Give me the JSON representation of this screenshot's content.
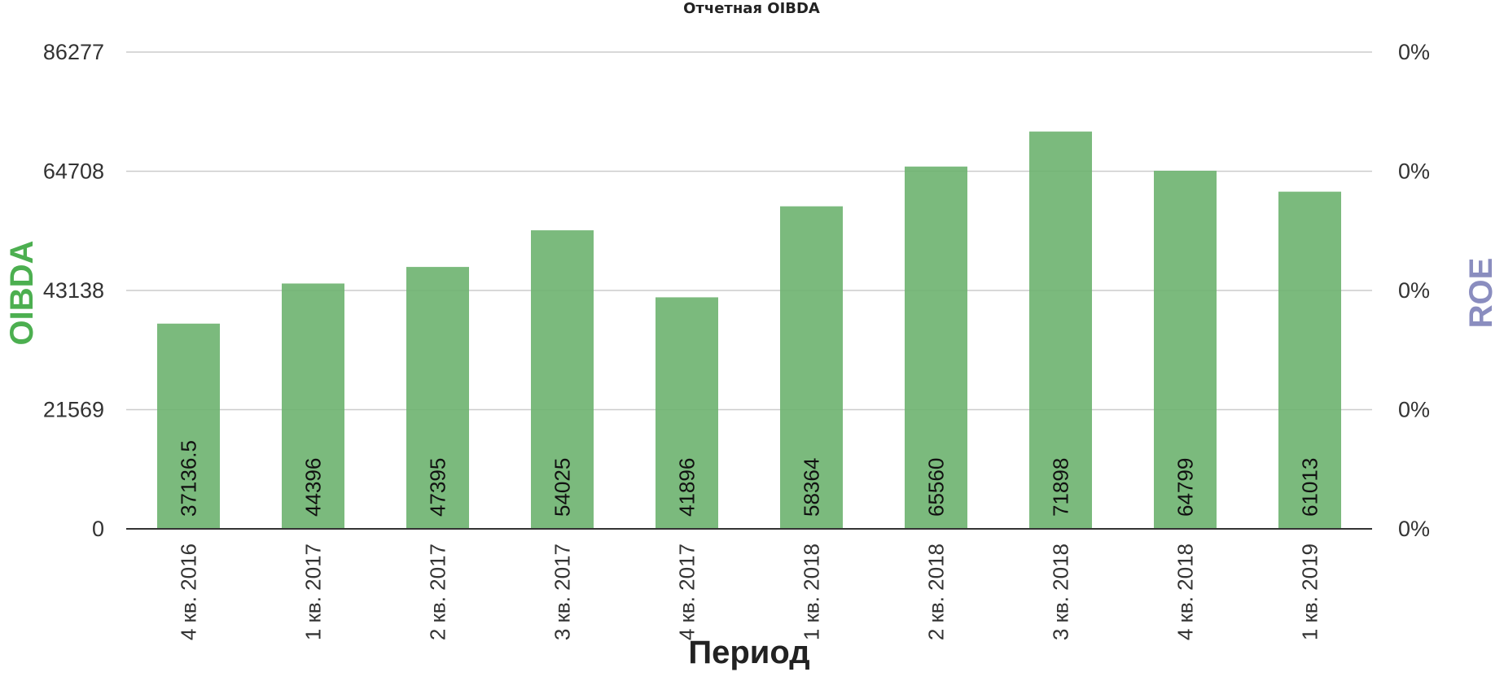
{
  "chart_data": {
    "type": "bar",
    "title": "Отчетная OIBDA",
    "xlabel": "Период",
    "ylabel": "OIBDA",
    "y2label": "ROE",
    "categories": [
      "4 кв. 2016",
      "1 кв. 2017",
      "2 кв. 2017",
      "3 кв. 2017",
      "4 кв. 2017",
      "1 кв. 2018",
      "2 кв. 2018",
      "3 кв. 2018",
      "4 кв. 2018",
      "1 кв. 2019"
    ],
    "series": [
      {
        "values": [
          37136.5,
          44396,
          47395,
          54025,
          41896,
          58364,
          65560,
          71898,
          64799,
          61013
        ]
      }
    ],
    "data_labels": [
      "37136.5",
      "44396",
      "47395",
      "54025",
      "41896",
      "58364",
      "65560",
      "71898",
      "64799",
      "61013"
    ],
    "ylim": [
      0,
      86277
    ],
    "y_ticks": [
      0,
      21569,
      43138,
      64708,
      86277
    ],
    "y2_ticks": [
      "0%",
      "0%",
      "0%",
      "0%",
      "0%"
    ],
    "grid": true,
    "colors": {
      "bar": "#6db36f",
      "ylabel": "#4caf50",
      "y2label": "#8a8dbf",
      "grid": "#cccccc",
      "baseline": "#333333"
    }
  }
}
